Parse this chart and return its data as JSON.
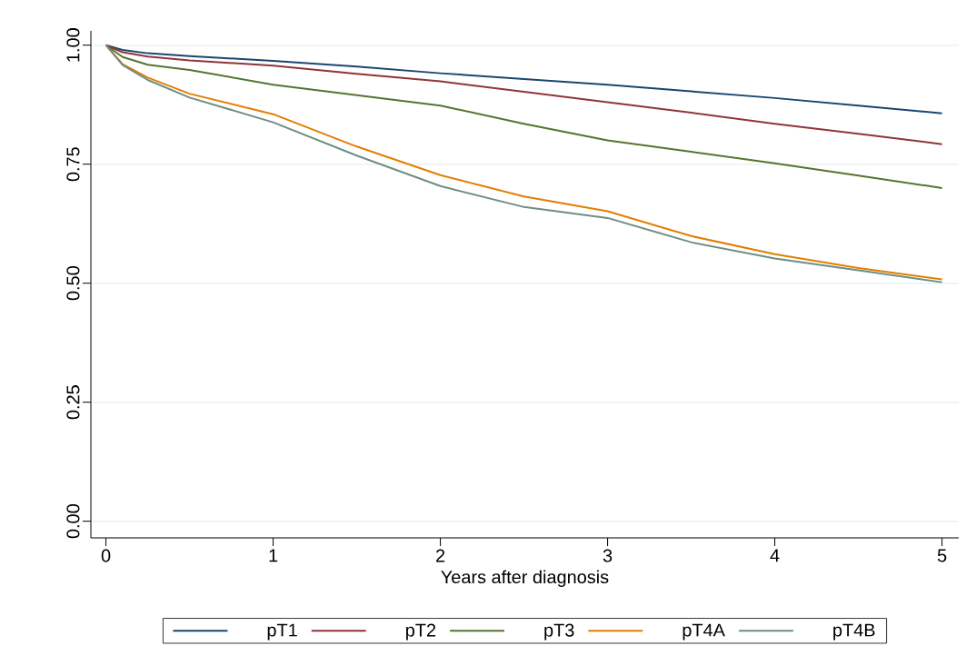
{
  "chart_data": {
    "type": "line",
    "xlabel": "Years after diagnosis",
    "x": [
      0,
      0.1,
      0.25,
      0.5,
      1,
      1.5,
      2,
      2.5,
      3,
      3.5,
      4,
      4.5,
      5
    ],
    "series": [
      {
        "name": "pT1",
        "color": "#1a476f",
        "values": [
          1,
          0.99,
          0.983,
          0.977,
          0.967,
          0.955,
          0.941,
          0.929,
          0.917,
          0.903,
          0.889,
          0.873,
          0.857
        ]
      },
      {
        "name": "pT2",
        "color": "#90353b",
        "values": [
          1,
          0.985,
          0.976,
          0.968,
          0.957,
          0.94,
          0.924,
          0.902,
          0.88,
          0.858,
          0.835,
          0.814,
          0.792
        ]
      },
      {
        "name": "pT3",
        "color": "#55752f",
        "values": [
          1,
          0.975,
          0.959,
          0.948,
          0.917,
          0.895,
          0.873,
          0.835,
          0.8,
          0.776,
          0.752,
          0.726,
          0.7
        ]
      },
      {
        "name": "pT4A",
        "color": "#e37e00",
        "values": [
          1,
          0.96,
          0.932,
          0.898,
          0.855,
          0.787,
          0.727,
          0.682,
          0.651,
          0.599,
          0.561,
          0.532,
          0.508
        ]
      },
      {
        "name": "pT4B",
        "color": "#6e8e84",
        "values": [
          1,
          0.958,
          0.927,
          0.89,
          0.838,
          0.768,
          0.704,
          0.66,
          0.637,
          0.586,
          0.552,
          0.527,
          0.502
        ]
      }
    ],
    "xlim": [
      -0.09,
      5.1
    ],
    "ylim": [
      -0.035,
      1.03
    ],
    "xticks": [
      0,
      1,
      2,
      3,
      4,
      5
    ],
    "yticks": [
      {
        "value": 0,
        "label": "0.00"
      },
      {
        "value": 0.25,
        "label": "0.25"
      },
      {
        "value": 0.5,
        "label": "0.50"
      },
      {
        "value": 0.75,
        "label": "0.75"
      },
      {
        "value": 1,
        "label": "1.00"
      }
    ],
    "grid": "y",
    "legend": "bottom",
    "marker": "none",
    "line_style": "solid"
  }
}
